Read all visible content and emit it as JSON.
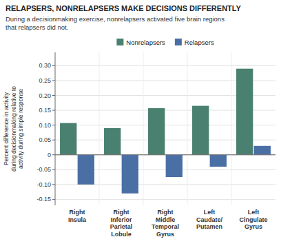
{
  "chart_data": {
    "type": "bar",
    "title": "RELAPSERS, NONRELAPSERS MAKE DECISIONS DIFFERENTLY",
    "subtitle": "During a decisionmaking exercise, nonrelapsers activated five brain regions\nthat relapsers did not.",
    "ylabel": "Percent difference in activity\nduring decisionmaking relative to\nactivity during simple response",
    "categories": [
      "Right\nInsula",
      "Right\nInferior\nParietal\nLobule",
      "Right\nMiddle\nTemporal\nGyrus",
      "Left\nCaudate/\nPutamen",
      "Left\nCingulate\nGyrus"
    ],
    "series": [
      {
        "name": "Nonrelapsers",
        "color": "#4a8070",
        "values": [
          0.107,
          0.09,
          0.157,
          0.165,
          0.29
        ]
      },
      {
        "name": "Relapsers",
        "color": "#4a6fa5",
        "values": [
          -0.1,
          -0.13,
          -0.075,
          -0.04,
          0.03
        ]
      }
    ],
    "ylim": [
      -0.17,
      0.345
    ],
    "yticks": [
      -0.15,
      {
        "value": -0.1,
        "label": "-0.10"
      },
      -0.05,
      0,
      0.05,
      {
        "value": 0.1,
        "label": "0.10"
      },
      0.15,
      {
        "value": 0.2,
        "label": "0.20"
      },
      0.25,
      {
        "value": 0.3,
        "label": "0.30"
      }
    ],
    "grid": true,
    "legend": "top"
  }
}
